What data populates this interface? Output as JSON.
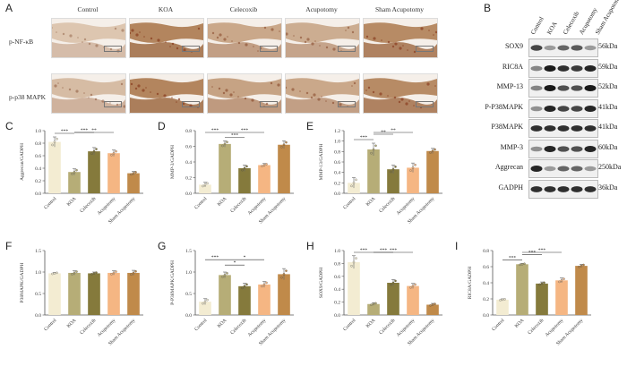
{
  "panels": {
    "A": "A",
    "B": "B",
    "C": "C",
    "D": "D",
    "E": "E",
    "F": "F",
    "G": "G",
    "H": "H",
    "I": "I"
  },
  "ihc": {
    "columns": [
      "Control",
      "KOA",
      "Celecoxib",
      "Acupotomy",
      "Sham Acupotomy"
    ],
    "rows": [
      "p-NF-κB",
      "p-p38  MAPK"
    ]
  },
  "blot": {
    "lanes": [
      "Control",
      "KOA",
      "Celecoxib",
      "Acupotomy",
      "Sham Acupotomy"
    ],
    "proteins": [
      {
        "name": "SOX9",
        "kda": "56kDa",
        "intensity": [
          0.75,
          0.35,
          0.6,
          0.65,
          0.35
        ]
      },
      {
        "name": "RIC8A",
        "kda": "59kDa",
        "intensity": [
          0.45,
          0.95,
          0.85,
          0.8,
          0.9
        ]
      },
      {
        "name": "MMP-13",
        "kda": "52kDa",
        "intensity": [
          0.45,
          0.95,
          0.7,
          0.7,
          0.95
        ]
      },
      {
        "name": "P-P38MAPK",
        "kda": "41kDa",
        "intensity": [
          0.4,
          0.9,
          0.75,
          0.75,
          0.9
        ]
      },
      {
        "name": "P38MAPK",
        "kda": "41kDa",
        "intensity": [
          0.85,
          0.85,
          0.85,
          0.85,
          0.85
        ]
      },
      {
        "name": "MMP-3",
        "kda": "60kDa",
        "intensity": [
          0.4,
          0.9,
          0.7,
          0.7,
          0.9
        ]
      },
      {
        "name": "Aggrecan",
        "kda": "250kDa",
        "intensity": [
          0.9,
          0.35,
          0.6,
          0.6,
          0.35
        ]
      },
      {
        "name": "GADPH",
        "kda": "36kDa",
        "intensity": [
          0.85,
          0.85,
          0.85,
          0.85,
          0.85
        ]
      }
    ]
  },
  "colors": [
    "#f3ecd2",
    "#b6ad77",
    "#857a3c",
    "#f5b683",
    "#c08a4a"
  ],
  "chart_data": [
    {
      "id": "C",
      "type": "bar",
      "categories": [
        "Control",
        "KOA",
        "Celecoxib",
        "Acupotomy",
        "Sham Acupotomy"
      ],
      "values": [
        0.82,
        0.34,
        0.67,
        0.64,
        0.32
      ],
      "errors": [
        0.08,
        0.05,
        0.06,
        0.05,
        0.03
      ],
      "ylabel": "Aggrecan/GADPH",
      "ylim": [
        0,
        1.0
      ],
      "yticks": [
        "0.0",
        "0.2",
        "0.4",
        "0.6",
        "0.8",
        "1.0"
      ],
      "sig": [
        {
          "from": 0,
          "to": 1,
          "level": 0,
          "label": "***"
        },
        {
          "from": 1,
          "to": 2,
          "level": 1,
          "label": "***"
        },
        {
          "from": 1,
          "to": 3,
          "level": 2,
          "label": "**"
        }
      ]
    },
    {
      "id": "D",
      "type": "bar",
      "categories": [
        "Control",
        "KOA",
        "Celecoxib",
        "Acupotomy",
        "Sham Acupotomy"
      ],
      "values": [
        0.11,
        0.63,
        0.32,
        0.36,
        0.62
      ],
      "errors": [
        0.03,
        0.04,
        0.04,
        0.02,
        0.05
      ],
      "ylabel": "MMP-3/GADPH",
      "ylim": [
        0,
        0.8
      ],
      "yticks": [
        "0.0",
        "0.2",
        "0.4",
        "0.6",
        "0.8"
      ],
      "sig": [
        {
          "from": 0,
          "to": 1,
          "level": 1,
          "label": "***"
        },
        {
          "from": 1,
          "to": 2,
          "level": 0,
          "label": "***"
        },
        {
          "from": 1,
          "to": 3,
          "level": 1,
          "label": "***"
        }
      ]
    },
    {
      "id": "E",
      "type": "bar",
      "categories": [
        "Control",
        "KOA",
        "Celecoxib",
        "Acupotomy",
        "Sham Acupotomy"
      ],
      "values": [
        0.2,
        0.84,
        0.46,
        0.49,
        0.81
      ],
      "errors": [
        0.1,
        0.12,
        0.08,
        0.09,
        0.05
      ],
      "ylabel": "MMP-13/GADPH",
      "ylim": [
        0,
        1.2
      ],
      "yticks": [
        "0.0",
        "0.2",
        "0.4",
        "0.6",
        "0.8",
        "1.0",
        "1.2"
      ],
      "sig": [
        {
          "from": 0,
          "to": 1,
          "level": 0,
          "label": "***"
        },
        {
          "from": 1,
          "to": 2,
          "level": 1,
          "label": "**"
        },
        {
          "from": 1,
          "to": 3,
          "level": 2,
          "label": "**"
        }
      ]
    },
    {
      "id": "F",
      "type": "bar",
      "categories": [
        "Control",
        "KOA",
        "Celecoxib",
        "Acupotomy",
        "Sham Acupotomy"
      ],
      "values": [
        0.97,
        0.98,
        0.97,
        0.98,
        0.98
      ],
      "errors": [
        0.02,
        0.05,
        0.03,
        0.05,
        0.06
      ],
      "ylabel": "P38MAPK/GADPH",
      "ylim": [
        0,
        1.5
      ],
      "yticks": [
        "0.0",
        "0.5",
        "1.0",
        "1.5"
      ],
      "sig": []
    },
    {
      "id": "G",
      "type": "bar",
      "categories": [
        "Control",
        "KOA",
        "Celecoxib",
        "Acupotomy",
        "Sham Acupotomy"
      ],
      "values": [
        0.31,
        0.93,
        0.67,
        0.71,
        0.95
      ],
      "errors": [
        0.07,
        0.07,
        0.07,
        0.07,
        0.13
      ],
      "ylabel": "P-P38MAPK/GADPH",
      "ylim": [
        0,
        1.5
      ],
      "yticks": [
        "0.0",
        "0.5",
        "1.0",
        "1.5"
      ],
      "sig": [
        {
          "from": 0,
          "to": 1,
          "level": 1,
          "label": "***"
        },
        {
          "from": 1,
          "to": 2,
          "level": 0,
          "label": "*"
        },
        {
          "from": 1,
          "to": 3,
          "level": 1,
          "label": "*"
        }
      ]
    },
    {
      "id": "H",
      "type": "bar",
      "categories": [
        "Control",
        "KOA",
        "Celecoxib",
        "Acupotomy",
        "Sham Acupotomy"
      ],
      "values": [
        0.82,
        0.17,
        0.5,
        0.45,
        0.16
      ],
      "errors": [
        0.1,
        0.02,
        0.05,
        0.04,
        0.02
      ],
      "ylabel": "SOX9/GADPH",
      "ylim": [
        0,
        1.0
      ],
      "yticks": [
        "0.0",
        "0.2",
        "0.4",
        "0.6",
        "0.8",
        "1.0"
      ],
      "sig": [
        {
          "from": 0,
          "to": 1,
          "level": 0,
          "label": "***"
        },
        {
          "from": 1,
          "to": 2,
          "level": 1,
          "label": "***"
        },
        {
          "from": 1,
          "to": 3,
          "level": 2,
          "label": "***"
        }
      ]
    },
    {
      "id": "I",
      "type": "bar",
      "categories": [
        "Control",
        "KOA",
        "Celecoxib",
        "Acupotomy",
        "Sham Acupotomy"
      ],
      "values": [
        0.19,
        0.63,
        0.39,
        0.43,
        0.61
      ],
      "errors": [
        0.01,
        0.01,
        0.02,
        0.03,
        0.02
      ],
      "ylabel": "RIC8A/GADPH",
      "ylim": [
        0,
        0.8
      ],
      "yticks": [
        "0.0",
        "0.2",
        "0.4",
        "0.6",
        "0.8"
      ],
      "sig": [
        {
          "from": 0,
          "to": 1,
          "level": 0,
          "label": "***"
        },
        {
          "from": 1,
          "to": 2,
          "level": 1,
          "label": "***"
        },
        {
          "from": 1,
          "to": 3,
          "level": 2,
          "label": "***"
        }
      ]
    }
  ]
}
